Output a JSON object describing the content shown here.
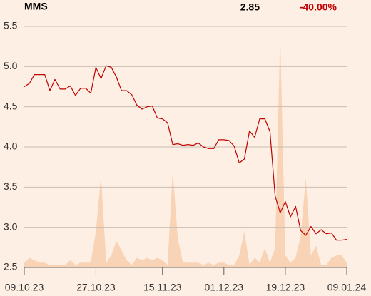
{
  "chart_data": {
    "type": "line",
    "title": "MMS",
    "price": 2.85,
    "change": "-40.00%",
    "x": [
      "09.10.23",
      "10.10.23",
      "11.10.23",
      "12.10.23",
      "13.10.23",
      "16.10.23",
      "17.10.23",
      "18.10.23",
      "19.10.23",
      "20.10.23",
      "23.10.23",
      "24.10.23",
      "25.10.23",
      "26.10.23",
      "27.10.23",
      "30.10.23",
      "31.10.23",
      "01.11.23",
      "02.11.23",
      "03.11.23",
      "06.11.23",
      "07.11.23",
      "08.11.23",
      "09.11.23",
      "10.11.23",
      "13.11.23",
      "14.11.23",
      "15.11.23",
      "16.11.23",
      "17.11.23",
      "20.11.23",
      "21.11.23",
      "22.11.23",
      "23.11.23",
      "24.11.23",
      "27.11.23",
      "28.11.23",
      "29.11.23",
      "30.11.23",
      "01.12.23",
      "04.12.23",
      "05.12.23",
      "06.12.23",
      "07.12.23",
      "08.12.23",
      "11.12.23",
      "12.12.23",
      "13.12.23",
      "14.12.23",
      "15.12.23",
      "18.12.23",
      "19.12.23",
      "20.12.23",
      "21.12.23",
      "22.12.23",
      "27.12.23",
      "28.12.23",
      "29.12.23",
      "02.01.24",
      "03.01.24",
      "04.01.24",
      "05.01.24",
      "08.01.24",
      "09.01.24"
    ],
    "xticks": [
      "09.10.23",
      "27.10.23",
      "15.11.23",
      "01.12.23",
      "19.12.23",
      "09.01.24"
    ],
    "series": [
      {
        "name": "MMS",
        "color": "#c00000",
        "values": [
          4.75,
          4.79,
          4.9,
          4.9,
          4.9,
          4.7,
          4.84,
          4.72,
          4.72,
          4.76,
          4.64,
          4.73,
          4.73,
          4.67,
          4.99,
          4.85,
          5.01,
          4.99,
          4.87,
          4.7,
          4.7,
          4.65,
          4.52,
          4.47,
          4.5,
          4.51,
          4.36,
          4.35,
          4.3,
          4.03,
          4.04,
          4.02,
          4.03,
          4.02,
          4.05,
          4.0,
          3.98,
          3.98,
          4.09,
          4.09,
          4.08,
          4.01,
          3.8,
          3.85,
          4.2,
          4.12,
          4.35,
          4.35,
          4.19,
          3.39,
          3.18,
          3.32,
          3.13,
          3.26,
          2.96,
          2.9,
          3.01,
          2.92,
          2.97,
          2.92,
          2.93,
          2.84,
          2.84,
          2.85
        ]
      },
      {
        "color": "#f8d3b6",
        "axis": "y2",
        "values": [
          2,
          4,
          3,
          2,
          2,
          1,
          1,
          1,
          1,
          3,
          1,
          2,
          2,
          2,
          15,
          38,
          2,
          5,
          11,
          7,
          3,
          1,
          4,
          3,
          4,
          3,
          4,
          3,
          1,
          40,
          12,
          2,
          2,
          2,
          2,
          1,
          2,
          1,
          2,
          2,
          1,
          1,
          5,
          15,
          1,
          4,
          2,
          8,
          2,
          8,
          97,
          5,
          2,
          4,
          13,
          37,
          5,
          9,
          1,
          1,
          4,
          5,
          5,
          2
        ]
      }
    ],
    "ylim": [
      2.5,
      5.5
    ],
    "yticks": [
      2.5,
      {
        "value": 3,
        "label": "3.0"
      },
      3.5,
      {
        "value": 4,
        "label": "4.0"
      },
      4.5,
      {
        "value": 5,
        "label": "5.0"
      },
      5.5
    ],
    "y2lim": [
      0,
      100
    ],
    "grid": true
  }
}
